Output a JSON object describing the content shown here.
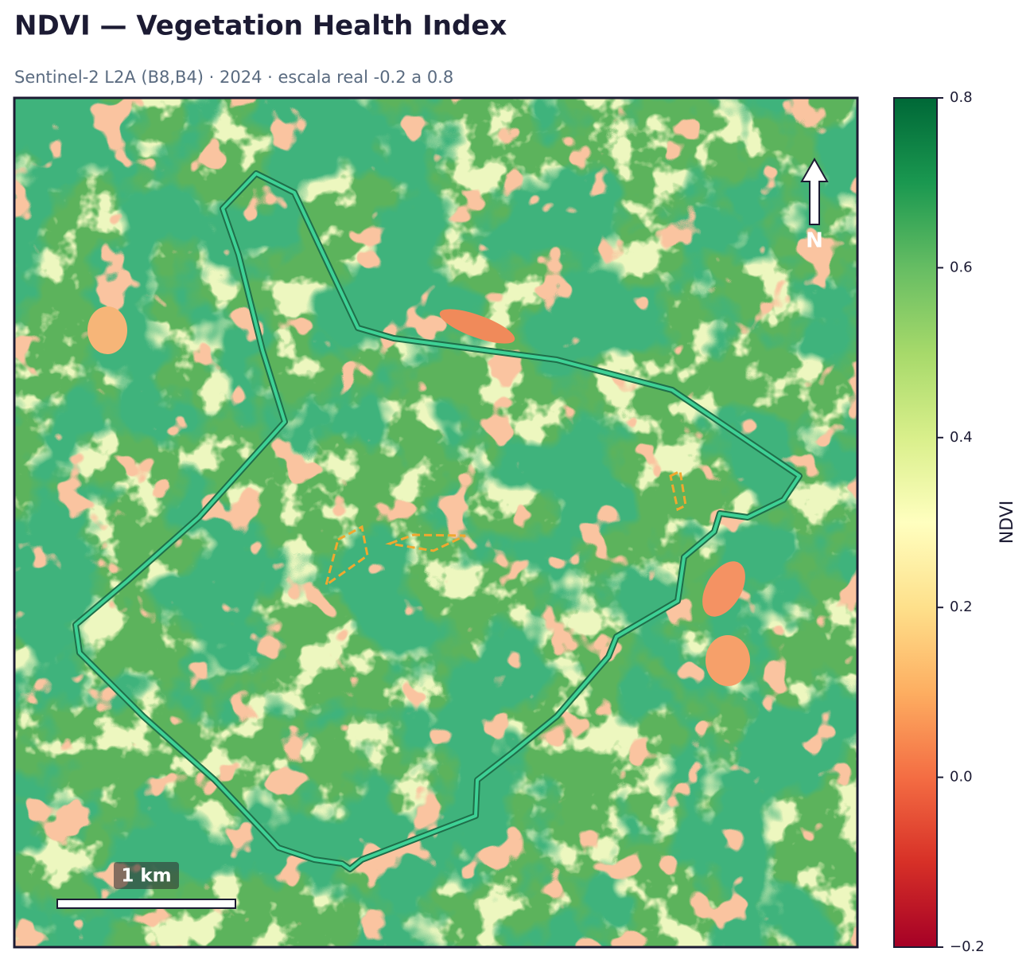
{
  "header": {
    "title": "NDVI — Vegetation Health Index",
    "subtitle": "Sentinel-2 L2A (B8,B4) · 2024 · escala real -0.2 a 0.8"
  },
  "map": {
    "north_label": "N",
    "scale_label": "1 km"
  },
  "colorbar": {
    "label": "NDVI",
    "lim": [
      -0.2,
      0.8
    ],
    "ticks": [
      {
        "value": -0.2,
        "label": "−0.2"
      },
      {
        "value": 0,
        "label": "0.0"
      },
      0.2,
      0.4,
      0.6,
      0.8
    ],
    "colors": [
      "#a50026",
      "#d73027",
      "#f46d43",
      "#fdae61",
      "#fee08b",
      "#ffffbf",
      "#d9ef8b",
      "#a6d96a",
      "#66bd63",
      "#1a9850",
      "#006837"
    ]
  }
}
